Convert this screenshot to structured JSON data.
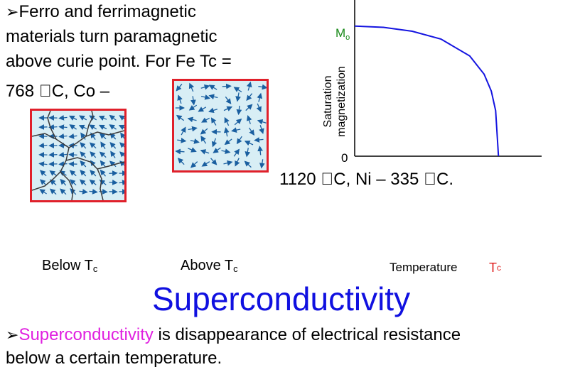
{
  "bullet_symbol": "➢",
  "paragraph1": {
    "line1": "Ferro and ferrimagnetic",
    "line2": "materials turn paramagnetic",
    "line3": "above curie point. For Fe Tc =",
    "line4": "768 C, Co –",
    "line5": "1120 C, Ni – 335 C."
  },
  "figures": {
    "below_label": "Below T",
    "below_sub": "c",
    "above_label": "Above T",
    "above_sub": "c"
  },
  "chart_data": {
    "type": "line",
    "ylabel_line1": "Saturation",
    "ylabel_line2": "magnetization",
    "xlabel": "Temperature",
    "y_top_label": "M",
    "y_top_sub": "o",
    "y_zero_label": "0",
    "x_mark_label": "T",
    "x_mark_sub": "c",
    "xlim": [
      0,
      1.3
    ],
    "ylim": [
      0,
      1.2
    ],
    "series": [
      {
        "x": [
          0,
          0.2,
          0.4,
          0.6,
          0.8,
          0.9,
          0.95,
          0.98,
          1.0
        ],
        "y": [
          1.0,
          0.99,
          0.96,
          0.9,
          0.77,
          0.63,
          0.5,
          0.35,
          0.0
        ]
      }
    ],
    "colors": {
      "curve": "#1414e0",
      "mo_label": "#1a8a1a",
      "tc_label": "#e02020"
    }
  },
  "heading": "Superconductivity",
  "paragraph2": {
    "term": "Superconductivity",
    "rest_line1": " is disappearance of electrical resistance",
    "line2": "below a certain temperature."
  },
  "colors": {
    "heading": "#1010e0",
    "term": "#e020e0",
    "box_border": "#e0202a",
    "box_fill": "#d8eef5",
    "arrow": "#1a5fa0"
  }
}
